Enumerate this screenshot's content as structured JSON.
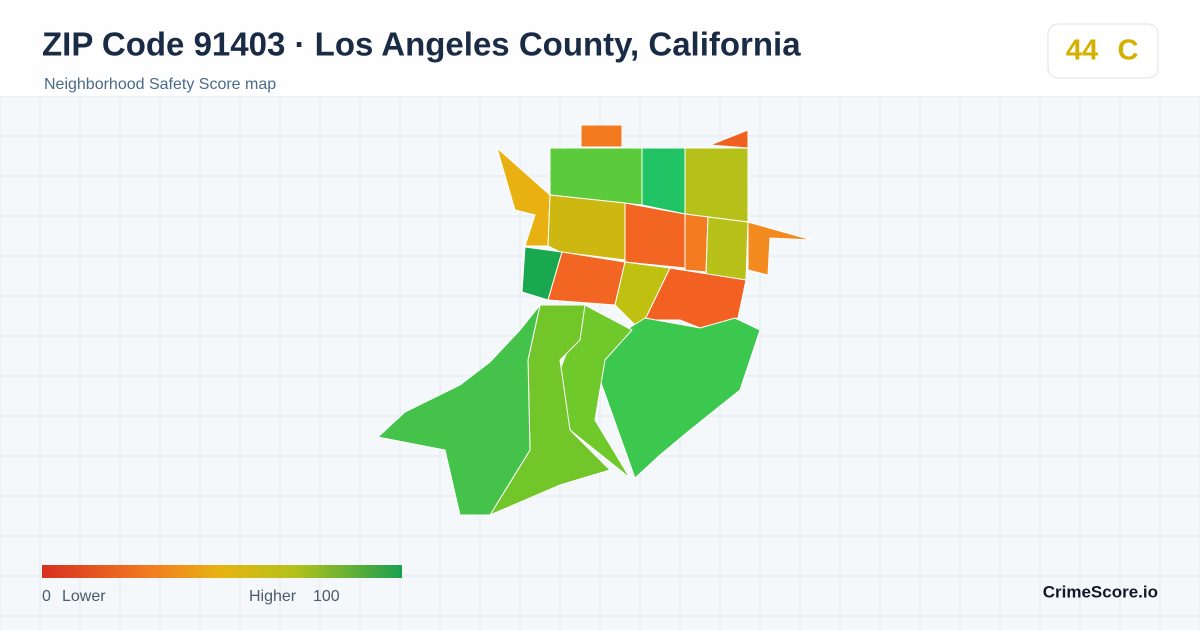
{
  "header": {
    "title": "ZIP Code 91403 · Los Angeles County, California",
    "subtitle": "Neighborhood Safety Score map"
  },
  "score": {
    "value": 44,
    "grade": "C"
  },
  "legend": {
    "min": 0,
    "min_label": "Lower",
    "max_label": "Higher",
    "max": 100
  },
  "brand": "CrimeScore.io"
}
